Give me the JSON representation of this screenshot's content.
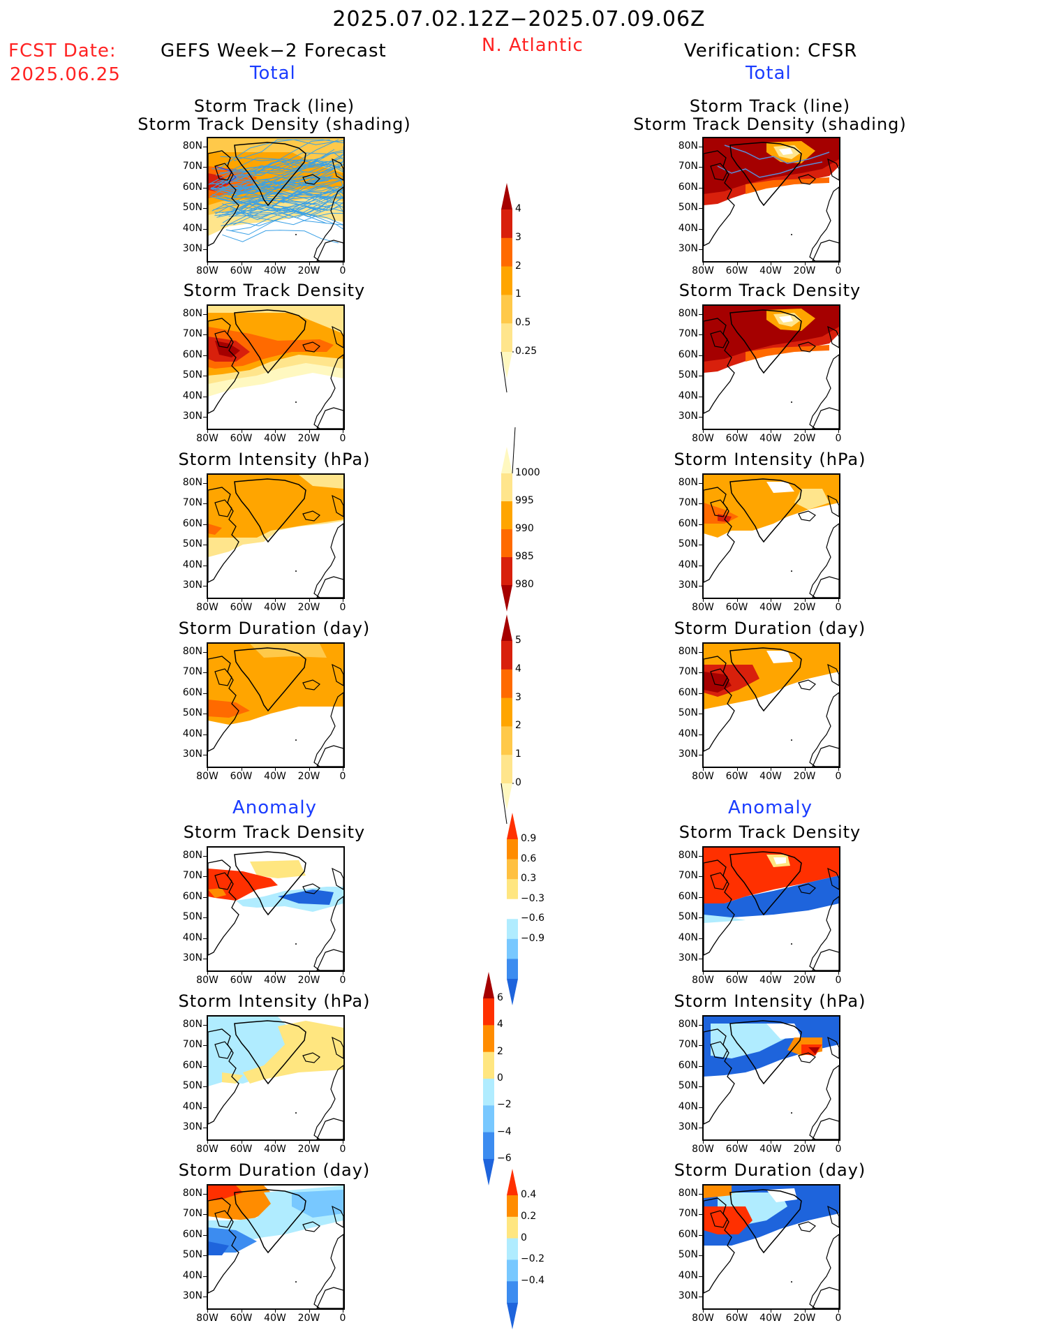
{
  "header": {
    "date_range": "2025.07.02.12Z−2025.07.09.06Z",
    "region": "N. Atlantic",
    "fcst_label": "FCST Date:",
    "fcst_date": "2025.06.25",
    "left_title": "GEFS Week−2 Forecast",
    "right_title": "Verification: CFSR",
    "total_left": "Total",
    "total_right": "Total",
    "anomaly_left": "Anomaly",
    "anomaly_right": "Anomaly"
  },
  "axes": {
    "lat_labels": [
      "80N",
      "70N",
      "60N",
      "50N",
      "40N",
      "30N"
    ],
    "lon_labels": [
      "80W",
      "60W",
      "40W",
      "20W",
      "0"
    ]
  },
  "panels": [
    {
      "id": "fc-track",
      "title1": "Storm Track (line)",
      "title2": "Storm Track Density (shading)"
    },
    {
      "id": "fc-density",
      "title1": "Storm Track Density"
    },
    {
      "id": "fc-intensity",
      "title1": "Storm Intensity (hPa)"
    },
    {
      "id": "fc-duration",
      "title1": "Storm Duration (day)"
    },
    {
      "id": "fc-anom-density",
      "title1": "Storm Track Density"
    },
    {
      "id": "fc-anom-intensity",
      "title1": "Storm Intensity (hPa)"
    },
    {
      "id": "fc-anom-duration",
      "title1": "Storm Duration (day)"
    },
    {
      "id": "vf-track",
      "title1": "Storm Track (line)",
      "title2": "Storm Track Density (shading)"
    },
    {
      "id": "vf-density",
      "title1": "Storm Track Density"
    },
    {
      "id": "vf-intensity",
      "title1": "Storm Intensity (hPa)"
    },
    {
      "id": "vf-duration",
      "title1": "Storm Duration (day)"
    },
    {
      "id": "vf-anom-density",
      "title1": "Storm Track Density"
    },
    {
      "id": "vf-anom-intensity",
      "title1": "Storm Intensity (hPa)"
    },
    {
      "id": "vf-anom-duration",
      "title1": "Storm Duration (day)"
    }
  ],
  "colorbars": {
    "density": {
      "labels": [
        "4",
        "3",
        "2",
        "1",
        "0.5",
        "0.25"
      ],
      "colors": [
        "#a50000",
        "#d8200c",
        "#ff6a00",
        "#ffa500",
        "#ffc94a",
        "#ffe58c",
        "#fff8c0"
      ]
    },
    "intensity": {
      "labels": [
        "1000",
        "995",
        "990",
        "985",
        "980"
      ],
      "colors": [
        "#fff8c0",
        "#ffe58c",
        "#ffa500",
        "#ff6a00",
        "#d8200c",
        "#a50000"
      ]
    },
    "duration": {
      "labels": [
        "5",
        "4",
        "3",
        "2",
        "1",
        "0"
      ],
      "colors": [
        "#a50000",
        "#d8200c",
        "#ff6a00",
        "#ffa500",
        "#ffc94a",
        "#ffe58c",
        "#fff8c0"
      ]
    },
    "anom_density": {
      "labels": [
        "0.9",
        "0.6",
        "0.3",
        "−0.3",
        "−0.6",
        "−0.9"
      ],
      "colors": [
        "#ff3000",
        "#ff8c00",
        "#ffc040",
        "#ffe680",
        "#ffffff",
        "#b0ecff",
        "#78c8ff",
        "#3c8cf0",
        "#1e64dc"
      ]
    },
    "anom_intensity": {
      "labels": [
        "6",
        "4",
        "2",
        "0",
        "−2",
        "−4",
        "−6"
      ],
      "colors": [
        "#a50000",
        "#ff3000",
        "#ff8c00",
        "#ffe680",
        "#b0ecff",
        "#78c8ff",
        "#3c8cf0",
        "#1e64dc"
      ]
    },
    "anom_duration": {
      "labels": [
        "0.4",
        "0.2",
        "0",
        "−0.2",
        "−0.4"
      ],
      "colors": [
        "#ff3000",
        "#ff8c00",
        "#ffe680",
        "#b0ecff",
        "#78c8ff",
        "#3c8cf0",
        "#1e64dc"
      ]
    }
  }
}
